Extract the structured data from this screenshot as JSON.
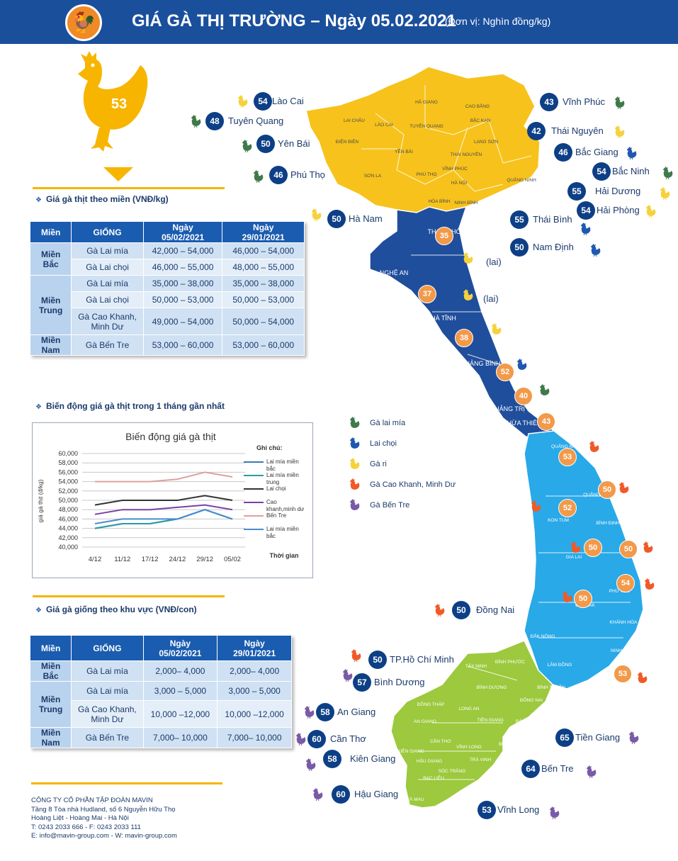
{
  "header": {
    "title": "GIÁ GÀ THỊ TRƯỜNG – Ngày 05.02.2021",
    "unit": "(Đơn vị: Nghìn đồng/kg)"
  },
  "hero": {
    "price": "53"
  },
  "section1": {
    "title": "Giá gà thịt theo miền (VNĐ/kg)"
  },
  "meat_table": {
    "headers": [
      "Miền",
      "GIỐNG",
      "Ngày",
      "05/02/2021",
      "Ngày",
      "29/01/2021"
    ],
    "regions": [
      {
        "name1": "Miền",
        "name2": "Bắc",
        "rows": [
          {
            "breed": "Gà Lai mía",
            "today": "42,000 – 54,000",
            "prev": "46,000 – 54,000"
          },
          {
            "breed": "Gà Lai chọi",
            "today": "46,000 – 55,000",
            "prev": "48,000 – 55,000"
          }
        ]
      },
      {
        "name1": "Miền",
        "name2": "Trung",
        "rows": [
          {
            "breed": "Gà Lai mía",
            "today": "35,000 – 38,000",
            "prev": "35,000 – 38,000"
          },
          {
            "breed": "Gà Lai chọi",
            "today": "50,000 – 53,000",
            "prev": "50,000 – 53,000"
          },
          {
            "breed": "Gà Cao Khanh,",
            "breed2": "Minh Dư",
            "today": "49,000 – 54,000",
            "prev": "50,000 – 54,000"
          }
        ]
      },
      {
        "name1": "Miền",
        "name2": "Nam",
        "rows": [
          {
            "breed": "Gà Bến Tre",
            "today": "53,000 – 60,000",
            "prev": "53,000 – 60,000"
          }
        ]
      }
    ]
  },
  "section2": {
    "title": "Biến động giá gà thịt trong 1 tháng gần nhất"
  },
  "chart_data": {
    "type": "line",
    "title": "Biến động giá gà thịt",
    "xlabel": "Thời gian",
    "ylabel": "giá gà thịt (đ/kg)",
    "categories": [
      "4/12",
      "11/12",
      "17/12",
      "24/12",
      "29/12",
      "05/02"
    ],
    "yticks": [
      "40,000",
      "42,000",
      "44,000",
      "46,000",
      "48,000",
      "50,000",
      "52,000",
      "54,000",
      "56,000",
      "58,000",
      "60,000"
    ],
    "ylim": [
      40000,
      60000
    ],
    "legend_title": "Ghi chú:",
    "series": [
      {
        "name": "Lai mía miền bắc",
        "color": "#3c78b4",
        "values": [
          44000,
          45000,
          45000,
          46000,
          48000,
          46000
        ]
      },
      {
        "name": "Lai mía miền trung",
        "color": "#2b9c9c",
        "values": [
          44000,
          45000,
          45000,
          46000,
          48000,
          46000
        ]
      },
      {
        "name": "Lai chọi",
        "color": "#333333",
        "values": [
          49000,
          50000,
          50000,
          50000,
          51000,
          50000
        ]
      },
      {
        "name": "Cao khanh,minh dư",
        "color": "#7a3fa6",
        "values": [
          47000,
          48000,
          48000,
          48500,
          49000,
          48000
        ]
      },
      {
        "name": "Bến Tre",
        "color": "#e0a0a0",
        "values": [
          54000,
          54000,
          54000,
          54500,
          56000,
          55000
        ]
      },
      {
        "name": "Lai mía miền bắc",
        "color": "#4a8bd0",
        "values": [
          45000,
          46000,
          46000,
          46000,
          48000,
          46000
        ]
      }
    ]
  },
  "section3": {
    "title": "Giá gà giống theo khu vực (VNĐ/con)"
  },
  "chick_table": {
    "headers": [
      "Miền",
      "GIỐNG",
      "Ngày",
      "05/02/2021",
      "Ngày",
      "29/01/2021"
    ],
    "regions": [
      {
        "name1": "Miền",
        "name2": "Bắc",
        "rows": [
          {
            "breed": "Gà Lai mía",
            "today": "2,000– 4,000",
            "prev": "2,000– 4,000"
          }
        ]
      },
      {
        "name1": "Miền",
        "name2": "Trung",
        "rows": [
          {
            "breed": "Gà Lai mía",
            "today": "3,000 – 5,000",
            "prev": "3,000 – 5,000"
          },
          {
            "breed": "Gà Cao Khanh,",
            "breed2": "Minh Dư",
            "today": "10,000 –12,000",
            "prev": "10,000 –12,000"
          }
        ]
      },
      {
        "name1": "Miền",
        "name2": "Nam",
        "rows": [
          {
            "breed": "Gà Bến Tre",
            "today": "7,000– 10,000",
            "prev": "7,000– 10,000"
          }
        ]
      }
    ]
  },
  "map": {
    "colors": {
      "north": "#f7c21b",
      "central": "#1f4e9c",
      "south_central": "#29a9e8",
      "south": "#9cc93d"
    },
    "legend": [
      {
        "label": "Gà lai mía",
        "color": "#3f7a4a"
      },
      {
        "label": "Lai chọi",
        "color": "#1f58b0"
      },
      {
        "label": "Gà ri",
        "color": "#f5d23c"
      },
      {
        "label": "Gà Cao Khanh, Minh Dư",
        "color": "#f05a28"
      },
      {
        "label": "Gà Bến Tre",
        "color": "#7a5aa6"
      }
    ],
    "provinces": [
      {
        "name": "Lào Cai",
        "price": "54",
        "hen": "#f5d23c"
      },
      {
        "name": "Tuyên Quang",
        "price": "48",
        "hen": "#3f7a4a"
      },
      {
        "name": "Yên Bái",
        "price": "50",
        "hen": "#3f7a4a"
      },
      {
        "name": "Phú Thọ",
        "price": "46",
        "hen": "#3f7a4a"
      },
      {
        "name": "Hà Nam",
        "price": "50",
        "hen": "#f5d23c"
      },
      {
        "name": "Vĩnh Phúc",
        "price": "43",
        "hen": "#3f7a4a"
      },
      {
        "name": "Thái Nguyên",
        "price": "42",
        "hen": "#f5d23c"
      },
      {
        "name": "Bắc Giang",
        "price": "46",
        "hen": "#1f58b0"
      },
      {
        "name": "Bắc Ninh",
        "price": "54",
        "hen": "#3f7a4a"
      },
      {
        "name": "Hải Dương",
        "price": "55",
        "hen": "#f5d23c"
      },
      {
        "name": "Hải Phòng",
        "price": "54",
        "hen": "#f5d23c"
      },
      {
        "name": "Thái Bình",
        "price": "55",
        "hen": "#1f58b0"
      },
      {
        "name": "Nam Định",
        "price": "50",
        "hen": "#1f58b0"
      },
      {
        "name": "Đồng Nai",
        "price": "50",
        "hen": "#f05a28"
      },
      {
        "name": "TP.Hồ Chí Minh",
        "price": "50",
        "hen": "#f05a28"
      },
      {
        "name": "Bình Dương",
        "price": "57",
        "hen": "#7a5aa6"
      },
      {
        "name": "An Giang",
        "price": "58",
        "hen": "#7a5aa6"
      },
      {
        "name": "Cần Thơ",
        "price": "60",
        "hen": "#7a5aa6"
      },
      {
        "name": "Kiên Giang",
        "price": "58",
        "hen": "#7a5aa6"
      },
      {
        "name": "Hậu Giang",
        "price": "60",
        "hen": "#7a5aa6"
      },
      {
        "name": "Tiền Giang",
        "price": "65",
        "hen": "#7a5aa6"
      },
      {
        "name": "Bến Tre",
        "price": "64",
        "hen": "#7a5aa6"
      },
      {
        "name": "Vĩnh Long",
        "price": "53",
        "hen": "#7a5aa6"
      }
    ],
    "lai": [
      "(lai)",
      "(lai)"
    ],
    "inner_prices": [
      "35",
      "37",
      "38",
      "52",
      "40",
      "43",
      "53",
      "50",
      "52",
      "50",
      "50",
      "54",
      "50",
      "53"
    ],
    "map_labels": {
      "north": [
        "LÀO CAI",
        "HÀ GIANG",
        "CAO BẰNG",
        "BẮC KẠN",
        "TUYÊN QUANG",
        "LẠNG SƠN",
        "LAI CHÂU",
        "ĐIỆN BIÊN",
        "YÊN BÁI",
        "THÁI NGUYÊN",
        "SƠN LA",
        "PHÚ THỌ",
        "VĨNH PHÚC",
        "HÀ NỘI",
        "QUẢNG NINH",
        "HÒA BÌNH",
        "NINH BÌNH"
      ],
      "central": [
        "THANH HÓA",
        "NGHỆ AN",
        "HÀ TĨNH",
        "QUẢNG BÌNH",
        "QUẢNG TRỊ",
        "THỪA THIÊN HUẾ"
      ],
      "south_central": [
        "QUẢNG NAM",
        "QUẢNG NGÃI",
        "KON TUM",
        "BÌNH ĐỊNH",
        "GIA LAI",
        "PHÚ YÊN",
        "ĐẮK LẮK",
        "KHÁNH HÒA",
        "ĐẮK NÔNG",
        "NINH THUẬN",
        "LÂM ĐỒNG",
        "BÌNH THUẬN"
      ],
      "south": [
        "BÌNH PHƯỚC",
        "TÂY NINH",
        "BÌNH DƯƠNG",
        "ĐỒNG NAI",
        "ĐỒNG THÁP",
        "LONG AN",
        "AN GIANG",
        "TIỀN GIANG",
        "CẦN THƠ",
        "VĨNH LONG",
        "KIÊN GIANG",
        "HẬU GIANG",
        "TRÀ VINH",
        "SÓC TRĂNG",
        "BẠC LIÊU",
        "CÀ MAU",
        "BẾN TRE",
        "BÀ RỊA VŨNG TÀU"
      ]
    }
  },
  "footer": {
    "company": "CÔNG TY CỔ PHẦN TẬP ĐOÀN MAVIN",
    "addr1": "Tầng 8 Tòa nhà Hudland, số 6 Nguyễn Hữu Thọ",
    "addr2": "Hoàng Liệt - Hoàng Mai - Hà Nội",
    "phone": "T: 0243 2033 666 - F: 0243 2033 111",
    "web": "E: info@mavin-group.com - W: mavin-group.com"
  }
}
